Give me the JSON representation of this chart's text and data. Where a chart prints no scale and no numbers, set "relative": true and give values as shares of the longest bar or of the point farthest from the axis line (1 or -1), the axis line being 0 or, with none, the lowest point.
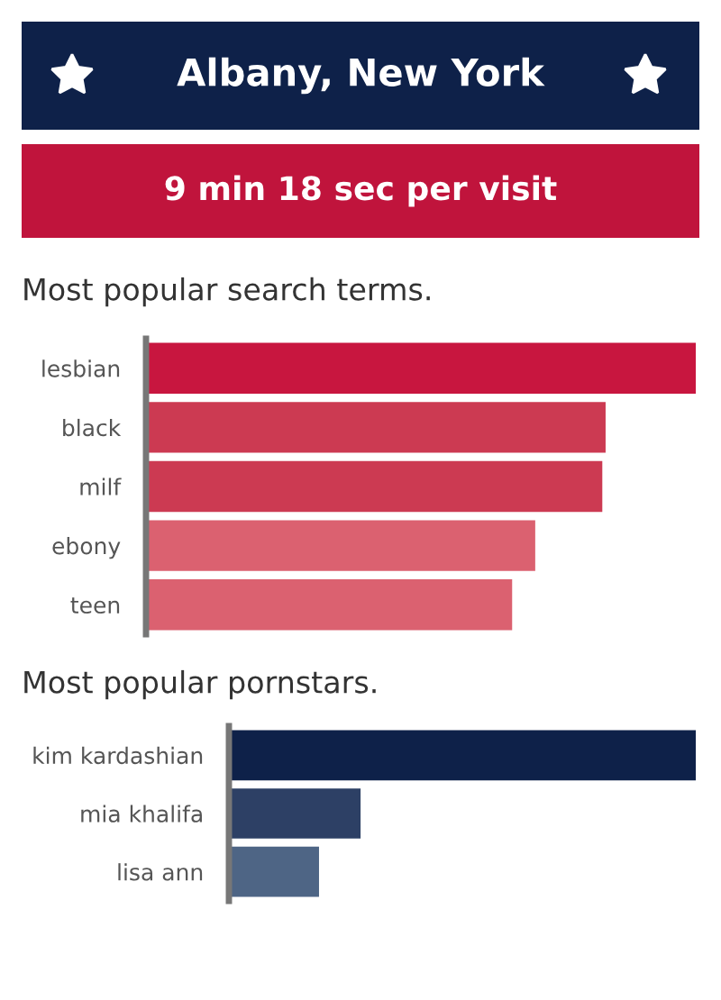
{
  "chart_data": [
    {
      "type": "other",
      "title": "Albany, New York",
      "subtitle": "9 min 18 sec per visit"
    },
    {
      "type": "bar",
      "orientation": "horizontal",
      "relative": true,
      "title": "Most popular search terms.",
      "categories": [
        "lesbian",
        "black",
        "milf",
        "ebony",
        "teen"
      ],
      "values": [
        1,
        0.836,
        0.83,
        0.708,
        0.666
      ],
      "colors": [
        "#c8163f",
        "#cc3a52",
        "#cc3a52",
        "#db6170",
        "#db6170"
      ],
      "grid": false,
      "legend": false
    },
    {
      "type": "bar",
      "orientation": "horizontal",
      "relative": true,
      "title": "Most popular pornstars.",
      "categories": [
        "kim kardashian",
        "mia khalifa",
        "lisa ann"
      ],
      "values": [
        1,
        0.282,
        0.193
      ],
      "colors": [
        "#0e2149",
        "#2d4065",
        "#4e6585"
      ],
      "grid": false,
      "legend": false
    }
  ]
}
